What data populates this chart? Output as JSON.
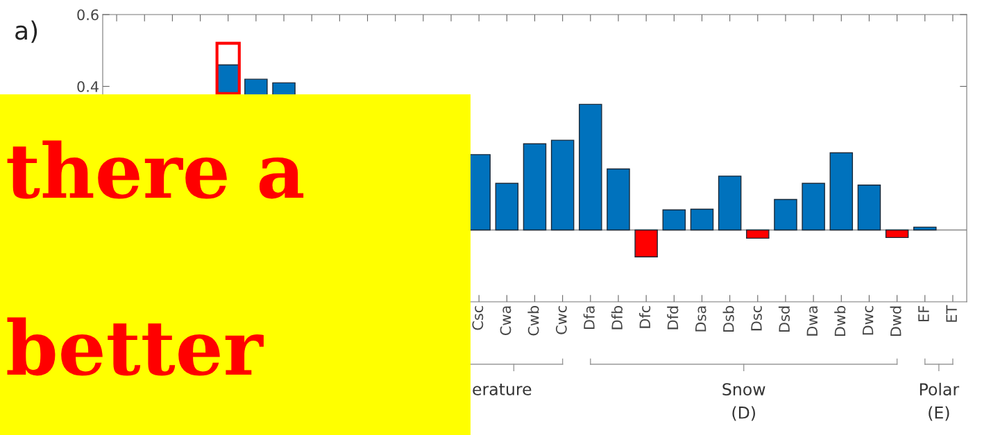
{
  "chart_data": {
    "type": "bar",
    "categories": [
      null,
      null,
      null,
      null,
      null,
      null,
      null,
      null,
      null,
      null,
      null,
      null,
      null,
      "Csc",
      "Cwa",
      "Cwb",
      "Cwc",
      "Dfa",
      "Dfb",
      "Dfc",
      "Dfd",
      "Dsa",
      "Dsb",
      "Dsc",
      "Dsd",
      "Dwa",
      "Dwb",
      "Dwc",
      "Dwd",
      "EF",
      "ET"
    ],
    "values": [
      null,
      null,
      null,
      null,
      0.46,
      0.42,
      0.41,
      null,
      null,
      null,
      null,
      null,
      null,
      0.21,
      0.13,
      0.24,
      0.25,
      0.35,
      0.17,
      -0.075,
      0.056,
      0.058,
      0.15,
      -0.023,
      0.085,
      0.13,
      0.215,
      0.125,
      -0.021,
      0.008,
      null
    ],
    "colors": [
      "#0072bd",
      "#0072bd",
      "#0072bd",
      "#0072bd",
      "#0072bd",
      "#0072bd",
      "#0072bd",
      "#0072bd",
      "#0072bd",
      "#0072bd",
      "#0072bd",
      "#0072bd",
      "#0072bd",
      "#0072bd",
      "#0072bd",
      "#0072bd",
      "#0072bd",
      "#0072bd",
      "#0072bd",
      "#ff0000",
      "#0072bd",
      "#0072bd",
      "#0072bd",
      "#ff0000",
      "#0072bd",
      "#0072bd",
      "#0072bd",
      "#0072bd",
      "#ff0000",
      "#0072bd",
      "#0072bd"
    ],
    "ylim": [
      -0.2,
      0.6
    ],
    "yticks": [
      0.4,
      0.6
    ],
    "ref_lines": [
      {
        "axis": "y",
        "value": 0,
        "color": "#888888"
      }
    ],
    "grid": false,
    "legend": false,
    "annotations": [
      "a)",
      "erature",
      "Snow\n(D)",
      "Polar\n(E)",
      "there a",
      "better"
    ]
  }
}
